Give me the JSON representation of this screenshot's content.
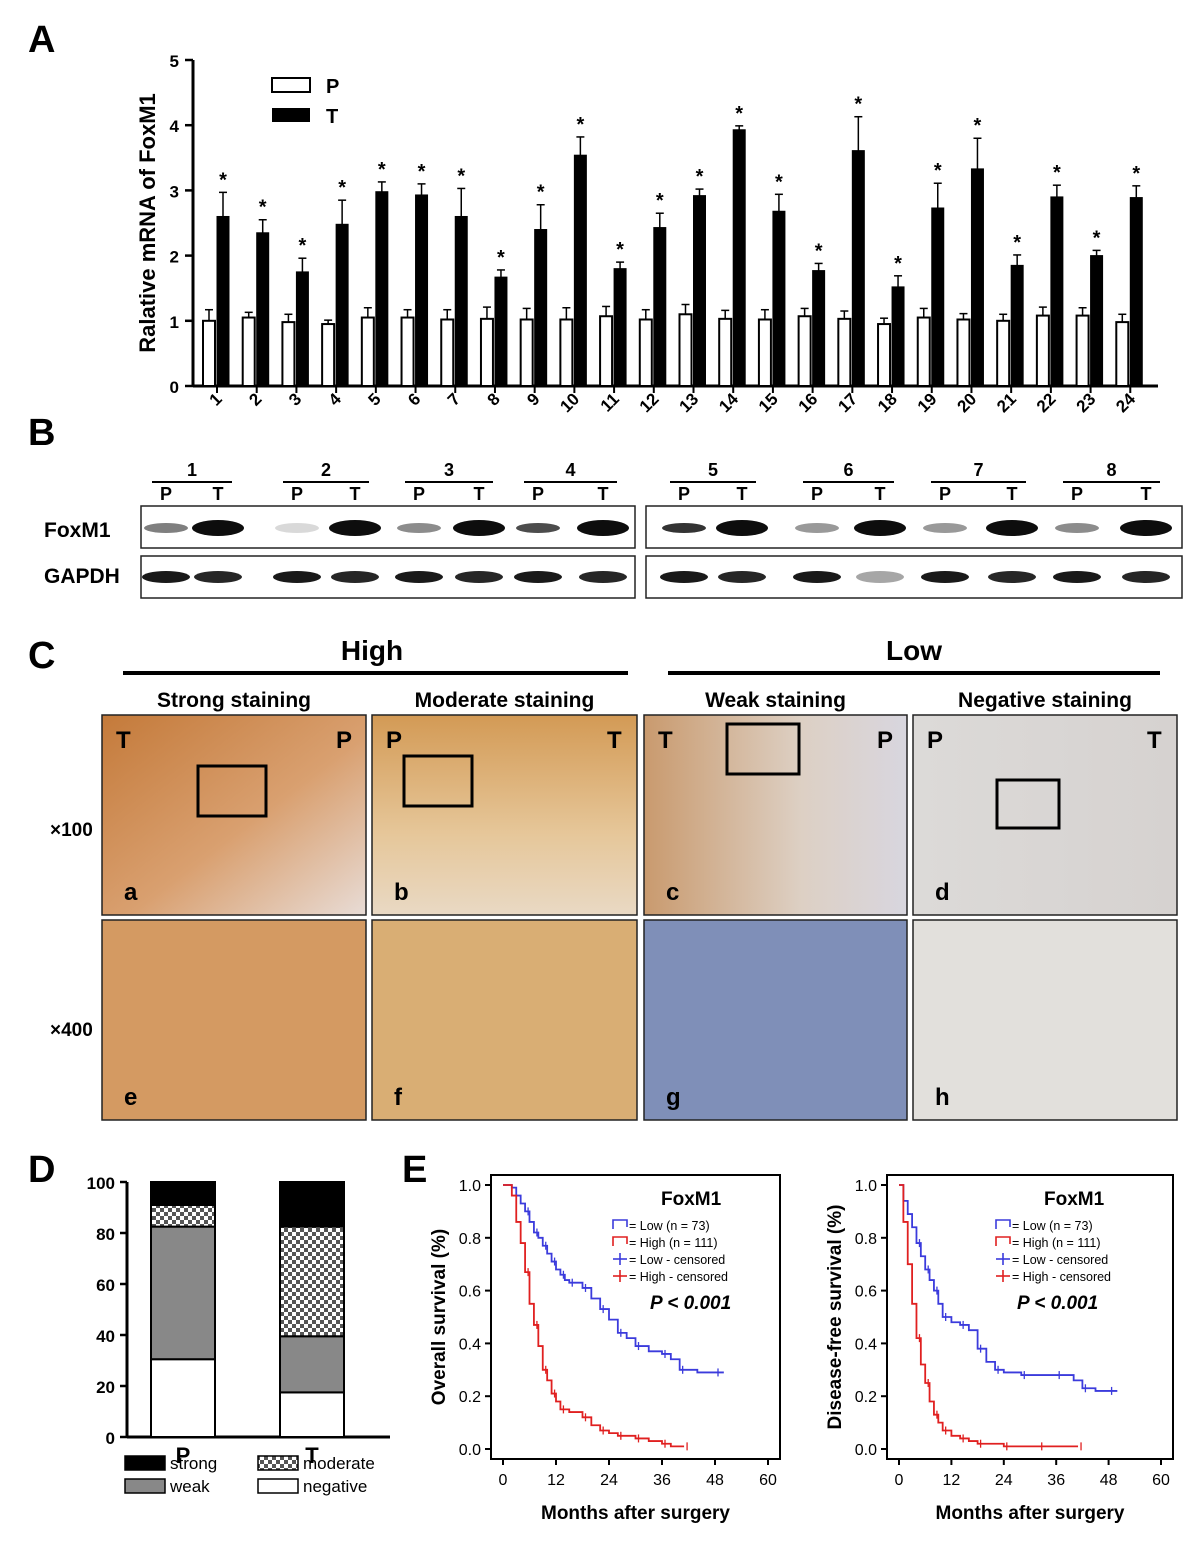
{
  "panels": {
    "a": "A",
    "b": "B",
    "c": "C",
    "d": "D",
    "e": "E"
  },
  "chart_data": [
    {
      "id": "A",
      "type": "bar",
      "ylabel": "Ralative mRNA of FoxM1",
      "ylim": [
        0,
        5
      ],
      "yticks": [
        0,
        1,
        2,
        3,
        4,
        5
      ],
      "categories": [
        "1",
        "2",
        "3",
        "4",
        "5",
        "6",
        "7",
        "8",
        "9",
        "10",
        "11",
        "12",
        "13",
        "14",
        "15",
        "16",
        "17",
        "18",
        "19",
        "20",
        "21",
        "22",
        "23",
        "24"
      ],
      "series": [
        {
          "name": "P",
          "color": "#ffffff",
          "values": [
            1.0,
            1.05,
            0.98,
            0.95,
            1.05,
            1.05,
            1.02,
            1.03,
            1.02,
            1.02,
            1.07,
            1.02,
            1.1,
            1.03,
            1.02,
            1.07,
            1.03,
            0.95,
            1.05,
            1.02,
            1.0,
            1.08,
            1.08,
            0.98
          ],
          "errors": [
            0.17,
            0.08,
            0.12,
            0.06,
            0.15,
            0.12,
            0.15,
            0.18,
            0.17,
            0.18,
            0.15,
            0.15,
            0.15,
            0.13,
            0.15,
            0.12,
            0.12,
            0.09,
            0.14,
            0.09,
            0.1,
            0.13,
            0.12,
            0.12
          ]
        },
        {
          "name": "T",
          "color": "#000000",
          "values": [
            2.6,
            2.35,
            1.75,
            2.48,
            2.98,
            2.93,
            2.6,
            1.67,
            2.4,
            3.54,
            1.8,
            2.43,
            2.92,
            3.93,
            2.68,
            1.77,
            3.61,
            1.52,
            2.73,
            3.33,
            1.85,
            2.9,
            2.0,
            2.89
          ],
          "errors": [
            0.37,
            0.2,
            0.21,
            0.37,
            0.15,
            0.17,
            0.43,
            0.11,
            0.38,
            0.28,
            0.1,
            0.22,
            0.1,
            0.06,
            0.26,
            0.11,
            0.52,
            0.17,
            0.38,
            0.47,
            0.16,
            0.18,
            0.08,
            0.18
          ]
        }
      ],
      "significance": "*",
      "legend": "top-left"
    },
    {
      "id": "D",
      "type": "bar",
      "stacked": true,
      "categories": [
        "P",
        "T"
      ],
      "ylim": [
        0,
        100
      ],
      "yticks": [
        0,
        20,
        40,
        60,
        80,
        100
      ],
      "series": [
        {
          "name": "negative",
          "values": [
            30.5,
            17.5
          ]
        },
        {
          "name": "weak",
          "values": [
            52.0,
            22.0
          ]
        },
        {
          "name": "moderate",
          "values": [
            8.5,
            43.0
          ]
        },
        {
          "name": "strong",
          "values": [
            9.0,
            17.5
          ]
        }
      ],
      "legend": "bottom"
    },
    {
      "id": "E-overall",
      "type": "line",
      "title": "FoxM1",
      "xlabel": "Months after surgery",
      "ylabel": "Overall survival (%)",
      "xlim": [
        0,
        60
      ],
      "ylim": [
        0,
        1.0
      ],
      "xticks": [
        0,
        12,
        24,
        36,
        48,
        60
      ],
      "yticks": [
        0.0,
        0.2,
        0.4,
        0.6,
        0.8,
        1.0
      ],
      "ytick_labels": [
        "0.0",
        "0.2",
        "0.4",
        "0.6",
        "0.8",
        "1.0"
      ],
      "annotation": "P < 0.001",
      "legend_entries": [
        "= Low (n = 73)",
        "= High (n = 111)",
        "= Low - censored",
        "= High - censored"
      ],
      "series": [
        {
          "name": "Low",
          "color": "#3b3bdc",
          "x": [
            0,
            2,
            3,
            4,
            5,
            6,
            7,
            8,
            9,
            10,
            11,
            12,
            13,
            14,
            15,
            16,
            18,
            20,
            22,
            24,
            26,
            28,
            30,
            33,
            36,
            38,
            40,
            44,
            48,
            50
          ],
          "y": [
            1.0,
            0.99,
            0.96,
            0.93,
            0.9,
            0.86,
            0.82,
            0.8,
            0.77,
            0.74,
            0.71,
            0.68,
            0.66,
            0.64,
            0.63,
            0.63,
            0.61,
            0.57,
            0.53,
            0.49,
            0.44,
            0.42,
            0.39,
            0.37,
            0.36,
            0.34,
            0.3,
            0.29,
            0.29,
            0.29
          ]
        },
        {
          "name": "High",
          "color": "#e02020",
          "x": [
            0,
            2,
            3,
            4,
            5,
            6,
            7,
            8,
            9,
            10,
            11,
            12,
            13,
            15,
            18,
            20,
            22,
            24,
            26,
            28,
            30,
            33,
            36,
            38,
            41
          ],
          "y": [
            1.0,
            0.96,
            0.86,
            0.78,
            0.67,
            0.55,
            0.47,
            0.39,
            0.3,
            0.26,
            0.21,
            0.18,
            0.15,
            0.14,
            0.12,
            0.09,
            0.07,
            0.06,
            0.05,
            0.05,
            0.04,
            0.03,
            0.02,
            0.01,
            0.01
          ]
        }
      ]
    },
    {
      "id": "E-disease-free",
      "type": "line",
      "title": "FoxM1",
      "xlabel": "Months after surgery",
      "ylabel": "Disease-free survival (%)",
      "xlim": [
        0,
        60
      ],
      "ylim": [
        0,
        1.0
      ],
      "xticks": [
        0,
        12,
        24,
        36,
        48,
        60
      ],
      "yticks": [
        0.0,
        0.2,
        0.4,
        0.6,
        0.8,
        1.0
      ],
      "ytick_labels": [
        "0.0",
        "0.2",
        "0.4",
        "0.6",
        "0.8",
        "1.0"
      ],
      "annotation": "P < 0.001",
      "legend_entries": [
        "= Low (n = 73)",
        "= High (n = 111)",
        "= Low - censored",
        "= High - censored"
      ],
      "series": [
        {
          "name": "Low",
          "color": "#3b3bdc",
          "x": [
            0,
            1,
            2,
            3,
            4,
            5,
            6,
            7,
            8,
            9,
            10,
            12,
            14,
            16,
            18,
            20,
            22,
            24,
            28,
            32,
            36,
            40,
            42,
            45,
            48,
            50
          ],
          "y": [
            1.0,
            0.94,
            0.89,
            0.84,
            0.78,
            0.73,
            0.68,
            0.64,
            0.6,
            0.55,
            0.5,
            0.48,
            0.47,
            0.45,
            0.38,
            0.33,
            0.3,
            0.29,
            0.28,
            0.28,
            0.28,
            0.26,
            0.23,
            0.22,
            0.22,
            0.22
          ]
        },
        {
          "name": "High",
          "color": "#e02020",
          "x": [
            0,
            1,
            2,
            3,
            4,
            5,
            6,
            7,
            8,
            9,
            10,
            12,
            14,
            16,
            18,
            20,
            24,
            28,
            32,
            36,
            41
          ],
          "y": [
            1.0,
            0.86,
            0.7,
            0.55,
            0.42,
            0.32,
            0.25,
            0.18,
            0.13,
            0.1,
            0.07,
            0.05,
            0.04,
            0.03,
            0.02,
            0.02,
            0.01,
            0.01,
            0.01,
            0.01,
            0.01
          ]
        }
      ]
    }
  ],
  "panelB": {
    "protein_labels": [
      "FoxM1",
      "GAPDH"
    ],
    "lane_numbers": [
      "1",
      "2",
      "3",
      "4",
      "5",
      "6",
      "7",
      "8"
    ],
    "lane_letters": [
      "P",
      "T"
    ]
  },
  "panelC": {
    "groups": [
      "High",
      "Low"
    ],
    "columns": [
      "Strong staining",
      "Moderate staining",
      "Weak staining",
      "Negative staining"
    ],
    "magnifications": [
      "×100",
      "×400"
    ],
    "sublabels": [
      "a",
      "b",
      "c",
      "d",
      "e",
      "f",
      "g",
      "h"
    ],
    "tissue_labels": [
      [
        "T",
        "P"
      ],
      [
        "P",
        "T"
      ],
      [
        "T",
        "P"
      ],
      [
        "P",
        "T"
      ]
    ]
  },
  "legendD": [
    "strong",
    "moderate",
    "weak",
    "negative"
  ]
}
